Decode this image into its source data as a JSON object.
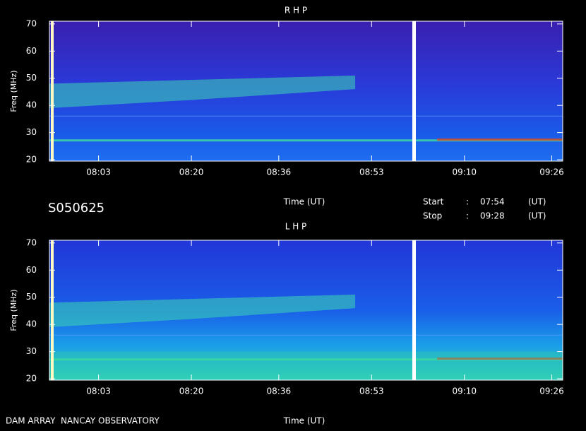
{
  "panels": [
    {
      "title": "R H P",
      "ylabel": "Freq (MHz)",
      "xlabel": "Time (UT)",
      "ylim": [
        19.5,
        71
      ],
      "yticks": [
        20,
        30,
        40,
        50,
        60,
        70
      ],
      "xlim": [
        474,
        568
      ],
      "xticks": [
        {
          "value": 483,
          "label": "08:03"
        },
        {
          "value": 500,
          "label": "08:20"
        },
        {
          "value": 516,
          "label": "08:36"
        },
        {
          "value": 533,
          "label": "08:53"
        },
        {
          "value": 550,
          "label": "09:10"
        },
        {
          "value": 566,
          "label": "09:26"
        }
      ]
    },
    {
      "title": "L H P",
      "ylabel": "Freq (MHz)",
      "xlabel": "Time (UT)",
      "ylim": [
        19.5,
        71
      ],
      "yticks": [
        20,
        30,
        40,
        50,
        60,
        70
      ],
      "xlim": [
        474,
        568
      ],
      "xticks": [
        {
          "value": 483,
          "label": "08:03"
        },
        {
          "value": 500,
          "label": "08:20"
        },
        {
          "value": 516,
          "label": "08:36"
        },
        {
          "value": 533,
          "label": "08:53"
        },
        {
          "value": 550,
          "label": "09:10"
        },
        {
          "value": 566,
          "label": "09:26"
        }
      ]
    }
  ],
  "info": {
    "id": "S050625",
    "start_label": "Start",
    "start_sep": ":",
    "start": "07:54",
    "start_unit": "(UT)",
    "stop_label": "Stop",
    "stop_sep": ":",
    "stop": "09:28",
    "stop_unit": "(UT)"
  },
  "footer": "DAM ARRAY  NANCAY OBSERVATORY"
}
